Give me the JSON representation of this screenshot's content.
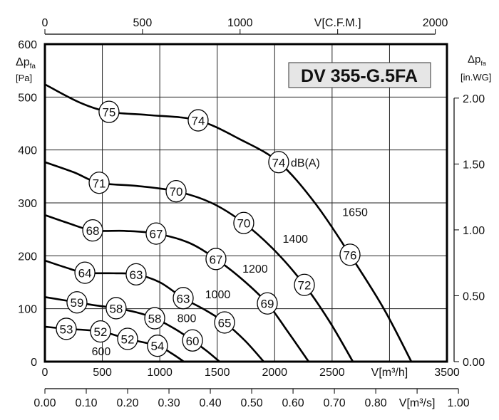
{
  "chart_data": {
    "type": "line",
    "title": "DV 355-G.5FA",
    "xlabel": "V[m³/h]",
    "ylabel": "Δpfa [Pa]",
    "xlim": [
      0,
      3500
    ],
    "ylim": [
      0,
      600
    ],
    "grid": true,
    "x_ticks": [
      "0",
      "500",
      "1000",
      "1500",
      "2000",
      "2500",
      "V[m³/h]",
      "3500"
    ],
    "y_ticks": [
      "0",
      "100",
      "200",
      "300",
      "400",
      "500",
      "600"
    ],
    "y_label_main": "Δp",
    "y_label_sub": "fa",
    "y_label_unit": "[Pa]",
    "top_axis": {
      "label": "V[C.F.M.]",
      "range": [
        0,
        2000
      ],
      "ticks": [
        "0",
        "500",
        "1000",
        "V[C.F.M.]",
        "2000"
      ]
    },
    "right_axis": {
      "label_main": "Δp",
      "label_sub": "fa",
      "label_unit": "[in.WG]",
      "range": [
        0,
        2.0
      ],
      "ticks": [
        "0.00",
        "0.50",
        "1.00",
        "1.50",
        "2.00"
      ]
    },
    "bottom2_axis": {
      "label": "V[m³/s]",
      "range": [
        0,
        1.0
      ],
      "ticks": [
        "0.00",
        "0.10",
        "0.20",
        "0.30",
        "0.40",
        "0.50",
        "0.60",
        "0.70",
        "0.80",
        "V[m³/s]",
        "1.00"
      ]
    },
    "noise_unit": "dB(A)",
    "series": [
      {
        "name": "1650",
        "label_at": [
          2700,
          275
        ],
        "points": [
          [
            0,
            524
          ],
          [
            300,
            490
          ],
          [
            560,
            472
          ],
          [
            900,
            466
          ],
          [
            1330,
            456
          ],
          [
            1700,
            420
          ],
          [
            2035,
            377
          ],
          [
            2350,
            300
          ],
          [
            2656,
            202
          ],
          [
            2950,
            100
          ],
          [
            3190,
            0
          ]
        ],
        "markers": [
          {
            "x": 558,
            "y": 472,
            "v": "75"
          },
          {
            "x": 1334,
            "y": 456,
            "v": "74"
          },
          {
            "x": 2035,
            "y": 377,
            "v": "74"
          },
          {
            "x": 2656,
            "y": 202,
            "v": "76"
          }
        ]
      },
      {
        "name": "1400",
        "label_at": [
          2180,
          225
        ],
        "points": [
          [
            0,
            377
          ],
          [
            250,
            358
          ],
          [
            472,
            338
          ],
          [
            800,
            332
          ],
          [
            1142,
            322
          ],
          [
            1450,
            300
          ],
          [
            1731,
            262
          ],
          [
            2000,
            210
          ],
          [
            2259,
            145
          ],
          [
            2480,
            75
          ],
          [
            2681,
            0
          ]
        ],
        "markers": [
          {
            "x": 472,
            "y": 338,
            "v": "71"
          },
          {
            "x": 1142,
            "y": 322,
            "v": "70"
          },
          {
            "x": 1731,
            "y": 262,
            "v": "70"
          },
          {
            "x": 2259,
            "y": 145,
            "v": "72"
          }
        ]
      },
      {
        "name": "1200",
        "label_at": [
          1830,
          168
        ],
        "points": [
          [
            0,
            277
          ],
          [
            200,
            262
          ],
          [
            416,
            248
          ],
          [
            700,
            247
          ],
          [
            968,
            242
          ],
          [
            1250,
            225
          ],
          [
            1489,
            194
          ],
          [
            1720,
            155
          ],
          [
            1936,
            110
          ],
          [
            2120,
            55
          ],
          [
            2296,
            0
          ]
        ],
        "markers": [
          {
            "x": 416,
            "y": 248,
            "v": "68"
          },
          {
            "x": 968,
            "y": 242,
            "v": "67"
          },
          {
            "x": 1489,
            "y": 194,
            "v": "67"
          },
          {
            "x": 1936,
            "y": 110,
            "v": "69"
          }
        ]
      },
      {
        "name": "1000",
        "label_at": [
          1505,
          120
        ],
        "points": [
          [
            0,
            191
          ],
          [
            180,
            178
          ],
          [
            348,
            168
          ],
          [
            600,
            167
          ],
          [
            794,
            165
          ],
          [
            1000,
            150
          ],
          [
            1204,
            120
          ],
          [
            1400,
            97
          ],
          [
            1564,
            74
          ],
          [
            1740,
            40
          ],
          [
            1905,
            0
          ]
        ],
        "markers": [
          {
            "x": 348,
            "y": 168,
            "v": "64"
          },
          {
            "x": 794,
            "y": 165,
            "v": "63"
          },
          {
            "x": 1204,
            "y": 120,
            "v": "63"
          },
          {
            "x": 1564,
            "y": 74,
            "v": "65"
          }
        ]
      },
      {
        "name": "800",
        "label_at": [
          1235,
          75
        ],
        "points": [
          [
            0,
            122
          ],
          [
            279,
            112
          ],
          [
            450,
            106
          ],
          [
            620,
            101
          ],
          [
            800,
            93
          ],
          [
            956,
            82
          ],
          [
            1130,
            62
          ],
          [
            1285,
            40
          ],
          [
            1410,
            20
          ],
          [
            1520,
            0
          ]
        ],
        "markers": [
          {
            "x": 279,
            "y": 112,
            "v": "59"
          },
          {
            "x": 620,
            "y": 101,
            "v": "58"
          },
          {
            "x": 956,
            "y": 82,
            "v": "58"
          },
          {
            "x": 1285,
            "y": 40,
            "v": "60"
          }
        ]
      },
      {
        "name": "600",
        "label_at": [
          490,
          12
        ],
        "points": [
          [
            0,
            66
          ],
          [
            186,
            62
          ],
          [
            484,
            57
          ],
          [
            720,
            43
          ],
          [
            980,
            30
          ],
          [
            1100,
            16
          ],
          [
            1210,
            0
          ]
        ],
        "markers": [
          {
            "x": 186,
            "y": 62,
            "v": "53"
          },
          {
            "x": 484,
            "y": 57,
            "v": "52"
          },
          {
            "x": 720,
            "y": 43,
            "v": "52"
          },
          {
            "x": 980,
            "y": 30,
            "v": "54"
          }
        ]
      }
    ]
  }
}
